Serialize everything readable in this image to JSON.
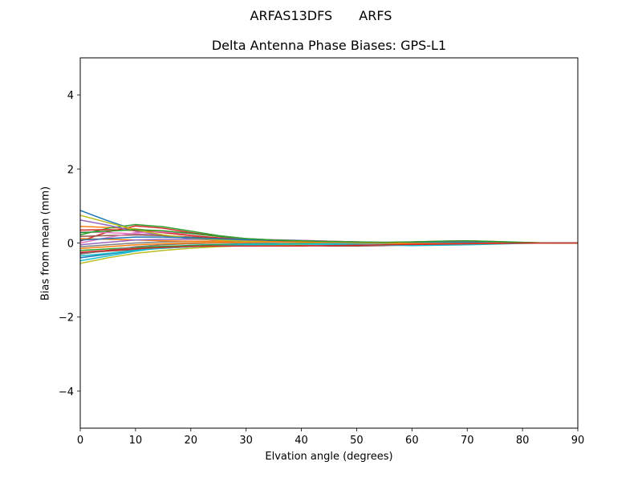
{
  "suptitle": {
    "left": "ARFAS13DFS",
    "right": "ARFS"
  },
  "chart_data": {
    "type": "line",
    "title": "Delta Antenna Phase Biases: GPS-L1",
    "xlabel": "Elvation angle (degrees)",
    "ylabel": "Bias from mean (mm)",
    "xlim": [
      0,
      90
    ],
    "ylim": [
      -5,
      5
    ],
    "xticks": [
      0,
      10,
      20,
      30,
      40,
      50,
      60,
      70,
      80,
      90
    ],
    "xtick_labels": [
      "0",
      "10",
      "20",
      "30",
      "40",
      "50",
      "60",
      "70",
      "80",
      "90"
    ],
    "yticks": [
      4,
      2,
      0,
      -2,
      -4
    ],
    "ytick_labels": [
      "4",
      "2",
      "0",
      "−2",
      "−4"
    ],
    "grid": false,
    "x": [
      0,
      5,
      10,
      15,
      20,
      25,
      30,
      35,
      40,
      45,
      50,
      55,
      60,
      65,
      70,
      75,
      80,
      85,
      90
    ],
    "series": [
      {
        "color": "#1f77b4",
        "values": [
          0.88,
          0.6,
          0.35,
          0.2,
          0.12,
          0.08,
          0.05,
          0.03,
          0.02,
          0.01,
          0.0,
          -0.01,
          -0.01,
          0.0,
          0.01,
          0.01,
          0.0,
          0.0,
          0.0
        ]
      },
      {
        "color": "#ff7f0e",
        "values": [
          0.45,
          0.42,
          0.38,
          0.3,
          0.2,
          0.12,
          0.08,
          0.05,
          0.03,
          0.02,
          0.01,
          0.0,
          0.0,
          0.01,
          0.01,
          0.0,
          0.0,
          0.0,
          0.0
        ]
      },
      {
        "color": "#2ca02c",
        "values": [
          0.22,
          0.4,
          0.5,
          0.44,
          0.32,
          0.2,
          0.12,
          0.08,
          0.05,
          0.03,
          0.02,
          0.01,
          0.02,
          0.04,
          0.05,
          0.03,
          0.01,
          0.0,
          0.0
        ]
      },
      {
        "color": "#d62728",
        "values": [
          0.05,
          0.3,
          0.46,
          0.4,
          0.28,
          0.18,
          0.11,
          0.07,
          0.05,
          0.03,
          0.02,
          0.01,
          0.02,
          0.03,
          0.04,
          0.03,
          0.01,
          0.0,
          0.0
        ]
      },
      {
        "color": "#9467bd",
        "values": [
          0.62,
          0.48,
          0.32,
          0.2,
          0.12,
          0.07,
          0.04,
          0.03,
          0.02,
          0.01,
          0.0,
          0.0,
          0.01,
          0.02,
          0.02,
          0.01,
          0.0,
          0.0,
          0.0
        ]
      },
      {
        "color": "#8c564b",
        "values": [
          -0.28,
          -0.22,
          -0.18,
          -0.14,
          -0.1,
          -0.08,
          -0.07,
          -0.06,
          -0.07,
          -0.08,
          -0.08,
          -0.07,
          -0.05,
          -0.03,
          -0.02,
          -0.01,
          0.0,
          0.0,
          0.0
        ]
      },
      {
        "color": "#e377c2",
        "values": [
          0.3,
          0.28,
          0.25,
          0.2,
          0.15,
          0.12,
          0.1,
          0.09,
          0.07,
          0.05,
          0.03,
          0.02,
          0.02,
          0.03,
          0.03,
          0.02,
          0.01,
          0.0,
          0.0
        ]
      },
      {
        "color": "#7f7f7f",
        "values": [
          -0.1,
          -0.05,
          0.0,
          0.03,
          0.04,
          0.04,
          0.03,
          0.02,
          0.02,
          0.01,
          0.01,
          0.0,
          -0.01,
          -0.01,
          0.0,
          0.0,
          0.0,
          0.0,
          0.0
        ]
      },
      {
        "color": "#bcbd22",
        "values": [
          -0.55,
          -0.4,
          -0.28,
          -0.2,
          -0.14,
          -0.1,
          -0.07,
          -0.05,
          -0.04,
          -0.03,
          -0.02,
          -0.01,
          -0.02,
          -0.03,
          -0.03,
          -0.02,
          -0.01,
          0.0,
          0.0
        ]
      },
      {
        "color": "#17becf",
        "values": [
          -0.48,
          -0.35,
          -0.22,
          -0.12,
          -0.06,
          -0.04,
          -0.02,
          -0.02,
          -0.03,
          -0.04,
          -0.05,
          -0.06,
          -0.07,
          -0.06,
          -0.05,
          -0.03,
          -0.01,
          0.0,
          0.0
        ]
      },
      {
        "color": "#1f77b4",
        "values": [
          -0.4,
          -0.3,
          -0.2,
          -0.12,
          -0.08,
          -0.05,
          -0.04,
          -0.03,
          -0.02,
          -0.01,
          0.0,
          0.01,
          0.02,
          0.02,
          0.01,
          0.0,
          0.0,
          0.0,
          0.0
        ]
      },
      {
        "color": "#ff7f0e",
        "values": [
          0.12,
          0.1,
          0.08,
          0.06,
          0.05,
          0.05,
          0.06,
          0.07,
          0.06,
          0.05,
          0.03,
          0.01,
          -0.01,
          -0.02,
          -0.02,
          -0.01,
          0.0,
          0.0,
          0.0
        ]
      },
      {
        "color": "#2ca02c",
        "values": [
          -0.2,
          -0.16,
          -0.12,
          -0.09,
          -0.07,
          -0.05,
          -0.04,
          -0.03,
          -0.02,
          -0.01,
          -0.01,
          0.0,
          0.01,
          0.01,
          0.01,
          0.0,
          0.0,
          0.0,
          0.0
        ]
      },
      {
        "color": "#d62728",
        "values": [
          0.35,
          0.36,
          0.34,
          0.28,
          0.2,
          0.14,
          0.1,
          0.07,
          0.05,
          0.03,
          0.02,
          0.01,
          0.03,
          0.05,
          0.06,
          0.04,
          0.01,
          0.0,
          0.0
        ]
      },
      {
        "color": "#9467bd",
        "values": [
          -0.05,
          0.02,
          0.08,
          0.1,
          0.1,
          0.09,
          0.08,
          0.08,
          0.07,
          0.05,
          0.03,
          0.01,
          0.0,
          0.0,
          0.0,
          0.0,
          0.0,
          0.0,
          0.0
        ]
      },
      {
        "color": "#8c564b",
        "values": [
          0.18,
          0.2,
          0.22,
          0.2,
          0.16,
          0.12,
          0.1,
          0.08,
          0.06,
          0.04,
          0.02,
          0.01,
          0.0,
          0.0,
          0.0,
          0.0,
          0.0,
          0.0,
          0.0
        ]
      },
      {
        "color": "#e377c2",
        "values": [
          0.0,
          0.15,
          0.28,
          0.3,
          0.25,
          0.18,
          0.12,
          0.08,
          0.06,
          0.04,
          0.03,
          0.02,
          0.02,
          0.02,
          0.02,
          0.01,
          0.0,
          0.0,
          0.0
        ]
      },
      {
        "color": "#7f7f7f",
        "values": [
          -0.3,
          -0.2,
          -0.1,
          -0.05,
          -0.02,
          0.0,
          0.01,
          0.02,
          0.02,
          0.02,
          0.01,
          0.0,
          -0.01,
          -0.02,
          -0.02,
          -0.01,
          0.0,
          0.0,
          0.0
        ]
      },
      {
        "color": "#bcbd22",
        "values": [
          0.75,
          0.55,
          0.36,
          0.22,
          0.13,
          0.08,
          0.05,
          0.03,
          0.02,
          0.01,
          0.0,
          0.0,
          0.01,
          0.01,
          0.01,
          0.0,
          0.0,
          0.0,
          0.0
        ]
      },
      {
        "color": "#17becf",
        "values": [
          -0.35,
          -0.28,
          -0.2,
          -0.14,
          -0.1,
          -0.07,
          -0.05,
          -0.04,
          -0.03,
          -0.02,
          -0.01,
          -0.01,
          0.0,
          0.0,
          0.0,
          0.0,
          0.0,
          0.0,
          0.0
        ]
      },
      {
        "color": "#1f77b4",
        "values": [
          0.08,
          0.12,
          0.16,
          0.16,
          0.14,
          0.11,
          0.09,
          0.07,
          0.05,
          0.03,
          0.02,
          0.01,
          0.01,
          0.02,
          0.02,
          0.01,
          0.0,
          0.0,
          0.0
        ]
      },
      {
        "color": "#ff7f0e",
        "values": [
          -0.15,
          -0.1,
          -0.05,
          -0.02,
          0.0,
          0.01,
          0.02,
          0.03,
          0.03,
          0.02,
          0.01,
          0.0,
          -0.01,
          -0.01,
          -0.01,
          0.0,
          0.0,
          0.0,
          0.0
        ]
      },
      {
        "color": "#2ca02c",
        "values": [
          0.28,
          0.32,
          0.36,
          0.33,
          0.26,
          0.18,
          0.12,
          0.08,
          0.06,
          0.04,
          0.03,
          0.02,
          0.03,
          0.05,
          0.06,
          0.04,
          0.02,
          0.0,
          0.0
        ]
      },
      {
        "color": "#d62728",
        "values": [
          -0.25,
          -0.2,
          -0.15,
          -0.12,
          -0.09,
          -0.08,
          -0.08,
          -0.08,
          -0.08,
          -0.07,
          -0.06,
          -0.05,
          -0.04,
          -0.03,
          -0.02,
          -0.01,
          0.0,
          0.0,
          0.0
        ]
      }
    ]
  }
}
